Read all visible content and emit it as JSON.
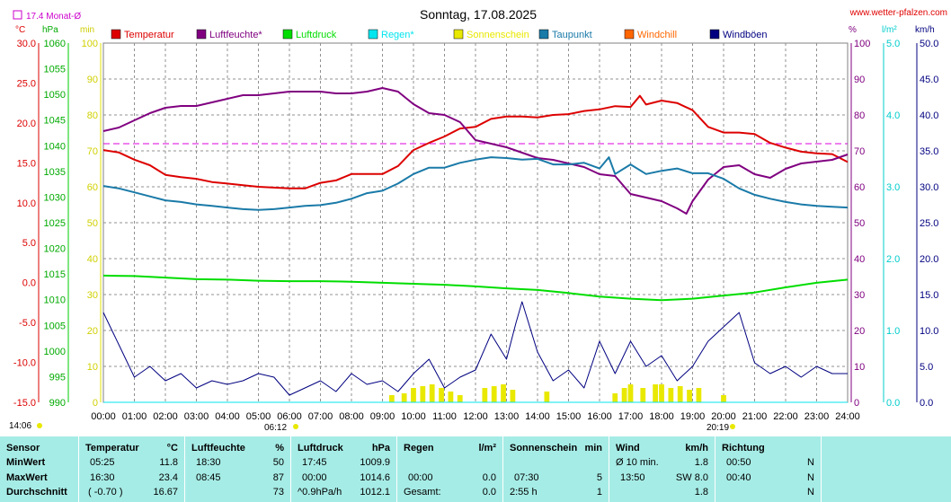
{
  "header": {
    "title": "Sonntag, 17.08.2025",
    "site": "www.wetter-pfalzen.com",
    "monthly_avg_label": "17.4 Monat-Ø"
  },
  "legend": [
    {
      "label": "Temperatur",
      "color": "#dd0000"
    },
    {
      "label": "Luftfeuchte*",
      "color": "#800080"
    },
    {
      "label": "Luftdruck",
      "color": "#00dd00"
    },
    {
      "label": "Regen*",
      "color": "#00e5ee"
    },
    {
      "label": "Sonnenschein",
      "color": "#e8e800"
    },
    {
      "label": "Taupunkt",
      "color": "#1a7aa8"
    },
    {
      "label": "Windchill",
      "color": "#ff6600"
    },
    {
      "label": "Windböen",
      "color": "#000080"
    }
  ],
  "axes": {
    "left_units": [
      "°C",
      "hPa",
      "min"
    ],
    "right_units": [
      "%",
      "l/m²",
      "km/h"
    ]
  },
  "sun": {
    "rise": "06:12",
    "set": "20:19",
    "update": "14:06"
  },
  "chart_data": {
    "type": "line",
    "title": "Sonntag, 17.08.2025",
    "x_ticks": [
      "00:00",
      "01:00",
      "02:00",
      "03:00",
      "04:00",
      "05:00",
      "06:00",
      "07:00",
      "08:00",
      "09:00",
      "10:00",
      "11:00",
      "12:00",
      "13:00",
      "14:00",
      "15:00",
      "16:00",
      "17:00",
      "18:00",
      "19:00",
      "20:00",
      "21:00",
      "22:00",
      "23:00",
      "24:00"
    ],
    "temp_axis": {
      "unit": "°C",
      "range": [
        -15,
        30
      ],
      "ticks": [
        "30.0",
        "25.0",
        "20.0",
        "15.0",
        "10.0",
        "5.0",
        "0.0",
        "-5.0",
        "-10.0",
        "-15.0"
      ]
    },
    "pressure_axis": {
      "unit": "hPa",
      "range": [
        990,
        1060
      ],
      "ticks": [
        "1060",
        "1055",
        "1050",
        "1045",
        "1040",
        "1035",
        "1030",
        "1025",
        "1020",
        "1015",
        "1010",
        "1005",
        "1000",
        "995",
        "990"
      ]
    },
    "sunshine_axis": {
      "unit": "min",
      "range": [
        0,
        100
      ],
      "ticks": [
        "100",
        "90",
        "80",
        "70",
        "60",
        "50",
        "40",
        "30",
        "20",
        "10",
        "0"
      ]
    },
    "humidity_axis": {
      "unit": "%",
      "range": [
        0,
        100
      ],
      "ticks": [
        "100",
        "90",
        "80",
        "70",
        "60",
        "50",
        "40",
        "30",
        "20",
        "10",
        "0"
      ]
    },
    "rain_axis": {
      "unit": "l/m²",
      "range": [
        0,
        5
      ],
      "ticks": [
        "5.0",
        "4.0",
        "3.0",
        "2.0",
        "1.0",
        "0.0"
      ]
    },
    "wind_axis": {
      "unit": "km/h",
      "range": [
        0,
        50
      ],
      "ticks": [
        "50.0",
        "45.0",
        "40.0",
        "35.0",
        "30.0",
        "25.0",
        "20.0",
        "15.0",
        "10.0",
        "5.0",
        "0.0"
      ]
    },
    "monthly_avg_temp": 17.4,
    "series": [
      {
        "name": "Temperatur",
        "axis": "temp",
        "color": "#dd0000",
        "x": [
          0,
          0.5,
          1,
          1.5,
          2,
          2.5,
          3,
          3.5,
          4,
          4.5,
          5,
          5.5,
          6,
          6.5,
          7,
          7.5,
          8,
          8.5,
          9,
          9.5,
          10,
          10.5,
          11,
          11.5,
          12,
          12.5,
          13,
          13.5,
          14,
          14.5,
          15,
          15.5,
          16,
          16.5,
          17,
          17.3,
          17.5,
          18,
          18.5,
          19,
          19.5,
          20,
          20.5,
          21,
          21.5,
          22,
          22.5,
          23,
          23.5,
          24
        ],
        "y": [
          16.6,
          16.3,
          15.4,
          14.7,
          13.5,
          13.2,
          13.0,
          12.6,
          12.4,
          12.2,
          12.0,
          11.9,
          11.8,
          11.8,
          12.5,
          12.8,
          13.6,
          13.6,
          13.6,
          14.6,
          16.6,
          17.5,
          18.3,
          19.3,
          19.5,
          20.5,
          20.8,
          20.8,
          20.7,
          21.0,
          21.1,
          21.5,
          21.7,
          22.1,
          22.0,
          23.4,
          22.3,
          22.8,
          22.5,
          21.6,
          19.5,
          18.8,
          18.8,
          18.6,
          17.5,
          16.9,
          16.4,
          16.2,
          16.1,
          15.1
        ]
      },
      {
        "name": "Luftfeuchte*",
        "axis": "hum",
        "color": "#800080",
        "x": [
          0,
          0.5,
          1,
          1.5,
          2,
          2.5,
          3,
          3.5,
          4,
          4.5,
          5,
          5.5,
          6,
          6.5,
          7,
          7.5,
          8,
          8.5,
          9,
          9.5,
          10,
          10.5,
          11,
          11.5,
          12,
          12.5,
          13,
          13.5,
          14,
          14.5,
          15,
          15.5,
          16,
          16.5,
          17,
          17.5,
          18,
          18.5,
          18.8,
          19,
          19.5,
          20,
          20.5,
          21,
          21.5,
          22,
          22.5,
          23,
          23.5,
          24
        ],
        "y": [
          75.5,
          76.5,
          78.5,
          80.5,
          82.0,
          82.5,
          82.5,
          83.5,
          84.5,
          85.5,
          85.5,
          86.0,
          86.5,
          86.5,
          86.5,
          86.0,
          86.0,
          86.5,
          87.5,
          86.5,
          83.0,
          80.5,
          80.0,
          78.0,
          73.0,
          72.0,
          71.0,
          69.5,
          68.0,
          67.5,
          66.5,
          65.5,
          63.5,
          63.0,
          58.0,
          57.0,
          56.0,
          54.0,
          52.5,
          56.0,
          62.0,
          65.5,
          66.0,
          63.5,
          62.5,
          65.0,
          66.5,
          67.0,
          67.5,
          69.0
        ]
      },
      {
        "name": "Luftdruck",
        "axis": "press",
        "color": "#00dd00",
        "x": [
          0,
          1,
          2,
          3,
          4,
          5,
          6,
          7,
          8,
          9,
          10,
          11,
          12,
          13,
          14,
          15,
          16,
          17,
          18,
          19,
          20,
          21,
          22,
          23,
          24
        ],
        "y": [
          1014.7,
          1014.6,
          1014.3,
          1014.0,
          1013.9,
          1013.7,
          1013.6,
          1013.6,
          1013.5,
          1013.3,
          1013.1,
          1012.9,
          1012.6,
          1012.2,
          1011.9,
          1011.3,
          1010.6,
          1010.2,
          1009.9,
          1010.2,
          1010.8,
          1011.4,
          1012.4,
          1013.3,
          1013.9
        ]
      },
      {
        "name": "Taupunkt",
        "axis": "temp",
        "color": "#1a7aa8",
        "x": [
          0,
          0.5,
          1,
          1.5,
          2,
          2.5,
          3,
          3.5,
          4,
          4.5,
          5,
          5.5,
          6,
          6.5,
          7,
          7.5,
          8,
          8.5,
          9,
          9.5,
          10,
          10.5,
          11,
          11.5,
          12,
          12.5,
          13,
          13.5,
          14,
          14.5,
          15,
          15.5,
          16,
          16.3,
          16.5,
          17,
          17.5,
          18,
          18.5,
          19,
          19.5,
          20,
          20.5,
          21,
          21.5,
          22,
          22.5,
          23,
          23.5,
          24
        ],
        "y": [
          12.1,
          11.8,
          11.3,
          10.8,
          10.3,
          10.1,
          9.8,
          9.6,
          9.4,
          9.2,
          9.1,
          9.2,
          9.4,
          9.6,
          9.7,
          10.0,
          10.5,
          11.2,
          11.5,
          12.4,
          13.6,
          14.4,
          14.4,
          15.0,
          15.4,
          15.7,
          15.6,
          15.4,
          15.5,
          14.8,
          14.8,
          15.0,
          14.3,
          15.7,
          13.6,
          14.8,
          13.6,
          14.0,
          14.3,
          13.7,
          13.7,
          13.0,
          11.8,
          11.0,
          10.5,
          10.1,
          9.8,
          9.6,
          9.5,
          9.4
        ]
      },
      {
        "name": "Windböen",
        "axis": "wind",
        "color": "#000080",
        "x": [
          0,
          0.5,
          1,
          1.5,
          2,
          2.5,
          3,
          3.5,
          4,
          4.5,
          5,
          5.5,
          6,
          6.5,
          7,
          7.5,
          8,
          8.5,
          9,
          9.5,
          10,
          10.5,
          11,
          11.5,
          12,
          12.5,
          13,
          13.3,
          13.5,
          14,
          14.5,
          15,
          15.5,
          16,
          16.5,
          17,
          17.5,
          18,
          18.5,
          19,
          19.5,
          20,
          20.5,
          21,
          21.5,
          22,
          22.5,
          23,
          23.5,
          24
        ],
        "y": [
          12.5,
          8.0,
          3.5,
          5.0,
          3.0,
          4.0,
          2.0,
          3.0,
          2.5,
          3.0,
          4.0,
          3.5,
          1.0,
          2.0,
          3.0,
          1.5,
          4.0,
          2.5,
          3.0,
          1.5,
          4.0,
          6.0,
          2.0,
          3.5,
          4.5,
          9.5,
          6.0,
          11.0,
          14.0,
          7.0,
          3.0,
          4.5,
          2.0,
          8.5,
          4.0,
          8.5,
          5.0,
          6.5,
          3.0,
          5.0,
          8.5,
          10.5,
          12.5,
          5.5,
          4.0,
          5.0,
          3.5,
          5.0,
          4.0,
          4.0
        ]
      },
      {
        "name": "Sonnenschein",
        "axis": "sun",
        "color": "#e8e800",
        "x": [
          9.3,
          9.7,
          10.0,
          10.3,
          10.6,
          10.9,
          11.2,
          11.5,
          12.3,
          12.6,
          12.9,
          13.2,
          14.3,
          16.5,
          16.8,
          17.0,
          17.4,
          17.8,
          18.0,
          18.3,
          18.6,
          18.9,
          19.2,
          20.0
        ],
        "y": [
          2.0,
          2.5,
          4.0,
          4.5,
          5.0,
          4.0,
          3.0,
          2.0,
          4.0,
          4.5,
          5.0,
          3.5,
          3.0,
          2.5,
          4.0,
          5.0,
          4.0,
          5.0,
          5.0,
          4.0,
          4.5,
          3.5,
          4.0,
          2.0
        ]
      },
      {
        "name": "Regen*",
        "axis": "rain",
        "color": "#00e5ee",
        "x": [
          0,
          24
        ],
        "y": [
          0.0,
          0.0
        ]
      }
    ]
  },
  "table": {
    "sensor": {
      "header": "Sensor",
      "rows": [
        "MinWert",
        "MaxWert",
        "Durchschnitt"
      ]
    },
    "temperature": {
      "header": "Temperatur",
      "unit": "°C",
      "rows": [
        [
          "05:25",
          "11.8"
        ],
        [
          "16:30",
          "23.4"
        ],
        [
          "( -0.70 )",
          "16.67"
        ]
      ]
    },
    "humidity": {
      "header": "Luftfeuchte",
      "unit": "%",
      "rows": [
        [
          "18:30",
          "50"
        ],
        [
          "08:45",
          "87"
        ],
        [
          "",
          "73"
        ]
      ]
    },
    "pressure": {
      "header": "Luftdruck",
      "unit": "hPa",
      "rows": [
        [
          "17:45",
          "1009.9"
        ],
        [
          "00:00",
          "1014.6"
        ],
        [
          "^0.9hPa/h",
          "1012.1"
        ]
      ]
    },
    "rain": {
      "header": "Regen",
      "unit": "l/m²",
      "rows": [
        [
          "",
          ""
        ],
        [
          "00:00",
          "0.0"
        ],
        [
          "Gesamt:",
          "0.0"
        ]
      ]
    },
    "sunshine": {
      "header": "Sonnenschein",
      "unit": "min",
      "rows": [
        [
          "",
          ""
        ],
        [
          "07:30",
          "5"
        ],
        [
          "2:55 h",
          "1"
        ]
      ]
    },
    "wind": {
      "header": "Wind",
      "unit": "km/h",
      "rows": [
        [
          "Ø 10 min.",
          "1.8"
        ],
        [
          "13:50",
          "SW 8.0"
        ],
        [
          "",
          "1.8"
        ]
      ]
    },
    "direction": {
      "header": "Richtung",
      "rows": [
        [
          "00:50",
          "N"
        ],
        [
          "00:40",
          "N"
        ],
        [
          "",
          "N"
        ]
      ]
    }
  }
}
